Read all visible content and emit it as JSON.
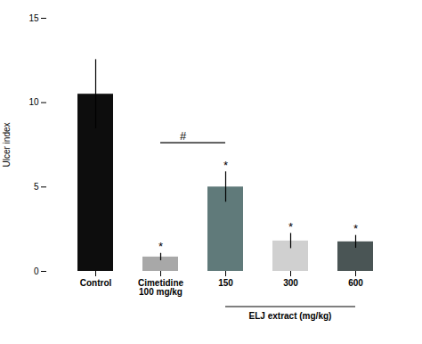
{
  "chart_data": {
    "type": "bar",
    "categories": [
      "Control",
      "Cimetidine\n100 mg/kg",
      "150",
      "300",
      "600"
    ],
    "values": [
      10.5,
      0.85,
      5.0,
      1.8,
      1.75
    ],
    "errors": [
      2.05,
      0.22,
      0.9,
      0.45,
      0.38
    ],
    "colors": [
      "#0d0d0d",
      "#a8a8a8",
      "#607a7a",
      "#d0d0d0",
      "#4a5555"
    ],
    "ylabel": "Ulcer index",
    "ylim": [
      0,
      15
    ],
    "yticks": [
      0,
      5,
      10,
      15
    ],
    "annotations": [
      {
        "text": "*",
        "categories": [
          "Cimetidine\n100 mg/kg",
          "150",
          "300",
          "600"
        ]
      },
      {
        "text": "#",
        "bracket": [
          "Cimetidine\n100 mg/kg",
          "150"
        ],
        "y": 7.6
      },
      {
        "text": "ELJ extract (mg/kg)",
        "span": [
          "150",
          "600"
        ]
      }
    ]
  }
}
